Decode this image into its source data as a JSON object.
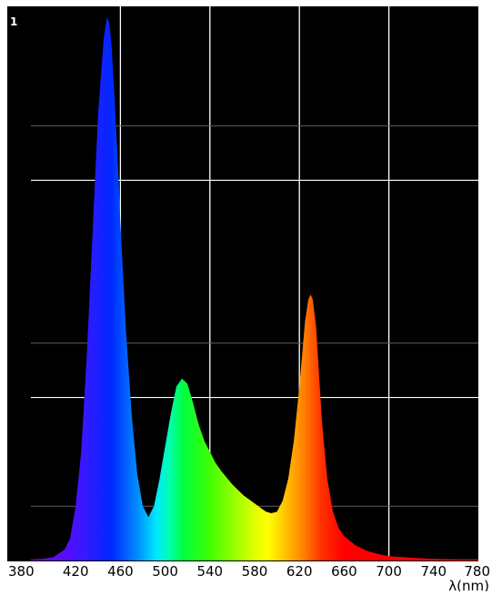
{
  "chart_data": {
    "type": "area",
    "title": "",
    "xlabel": "λ(nm)",
    "ylabel": "",
    "ymax_label": "1",
    "xlim": [
      380,
      780
    ],
    "ylim": [
      0,
      1
    ],
    "x_ticks": [
      380,
      420,
      460,
      500,
      540,
      580,
      620,
      660,
      700,
      740,
      780
    ],
    "x_tick_labels": [
      "380",
      "420",
      "460",
      "500",
      "540",
      "580",
      "620",
      "660",
      "700",
      "740",
      "780"
    ],
    "major_gridlines_x": [
      460,
      540,
      620,
      700
    ],
    "major_gridlines_y": [
      0.3,
      0.7
    ],
    "minor_gridlines_y": [
      0.1,
      0.4,
      0.8
    ],
    "background": "#000000",
    "grid_color": "#ffffff",
    "fill": "spectral rainbow gradient (violet to red)",
    "series": [
      {
        "x": [
          380,
          390,
          400,
          410,
          415,
          420,
          425,
          430,
          435,
          440,
          445,
          448,
          450,
          452,
          455,
          458,
          460,
          465,
          470,
          475,
          480,
          485,
          490,
          495,
          500,
          505,
          510,
          515,
          520,
          525,
          530,
          535,
          540,
          545,
          550,
          560,
          570,
          580,
          590,
          595,
          600,
          605,
          610,
          615,
          620,
          625,
          628,
          630,
          632,
          635,
          638,
          640,
          645,
          650,
          655,
          660,
          670,
          680,
          690,
          700,
          720,
          740,
          760,
          780
        ],
        "y": [
          0.002,
          0.003,
          0.006,
          0.02,
          0.04,
          0.1,
          0.2,
          0.38,
          0.6,
          0.82,
          0.96,
          1.0,
          0.99,
          0.95,
          0.84,
          0.72,
          0.62,
          0.42,
          0.27,
          0.16,
          0.1,
          0.08,
          0.1,
          0.15,
          0.21,
          0.27,
          0.32,
          0.335,
          0.325,
          0.29,
          0.25,
          0.22,
          0.2,
          0.18,
          0.165,
          0.14,
          0.12,
          0.105,
          0.09,
          0.087,
          0.09,
          0.11,
          0.15,
          0.22,
          0.32,
          0.44,
          0.48,
          0.49,
          0.48,
          0.43,
          0.33,
          0.26,
          0.15,
          0.09,
          0.06,
          0.045,
          0.028,
          0.018,
          0.012,
          0.008,
          0.005,
          0.003,
          0.002,
          0.002
        ]
      }
    ]
  }
}
